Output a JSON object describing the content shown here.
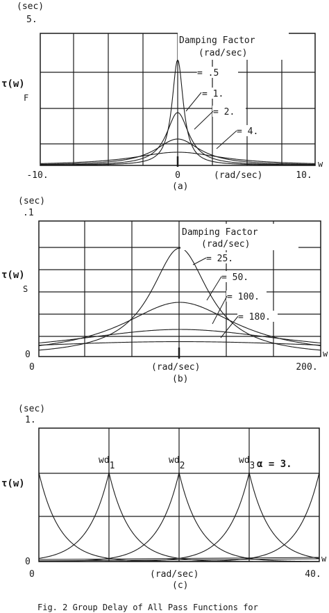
{
  "chart_data": [
    {
      "type": "line",
      "panel_label": "(a)",
      "ylabel": "τ(w)",
      "y_unit": "(sec)",
      "y_max_label": "5.",
      "y_side_letter": "F",
      "xlabel": "(rad/sec)",
      "x_end_label": "w",
      "x_tick_labels": [
        "-10.",
        "0",
        "10."
      ],
      "xlim": [
        -10,
        10
      ],
      "ylim": [
        0,
        5
      ],
      "legend_title": [
        "Damping Factor",
        "(rad/sec)"
      ],
      "legend_labels": [
        "= .5",
        "= 1.",
        "= 2.",
        "= 4."
      ],
      "grid": true,
      "series": [
        {
          "damping": 0.5,
          "peak": 4.0
        },
        {
          "damping": 1.0,
          "peak": 2.0
        },
        {
          "damping": 2.0,
          "peak": 1.0
        },
        {
          "damping": 4.0,
          "peak": 0.5
        }
      ]
    },
    {
      "type": "line",
      "panel_label": "(b)",
      "ylabel": "τ(w)",
      "y_unit": "(sec)",
      "y_max_label": ".1",
      "y_side_letter": "S",
      "xlabel": "(rad/sec)",
      "x_end_label": "w",
      "x_tick_labels": [
        "0",
        "200."
      ],
      "y_min_label": "0",
      "xlim": [
        0,
        200
      ],
      "ylim": [
        0,
        0.1
      ],
      "legend_title": [
        "Damping Factor",
        "(rad/sec)"
      ],
      "legend_labels": [
        "= 25.",
        "= 50.",
        "= 100.",
        "= 180."
      ],
      "grid": true,
      "series": [
        {
          "damping": 25,
          "peak": 0.08
        },
        {
          "damping": 50,
          "peak": 0.04
        },
        {
          "damping": 100,
          "peak": 0.02
        },
        {
          "damping": 180,
          "peak": 0.011
        }
      ]
    },
    {
      "type": "line",
      "panel_label": "(c)",
      "ylabel": "τ(w)",
      "y_unit": "(sec)",
      "y_max_label": "1.",
      "y_min_label": "0",
      "xlabel": "(rad/sec)",
      "x_end_label": "w",
      "x_tick_labels": [
        "0",
        "40."
      ],
      "xlim": [
        0,
        40
      ],
      "ylim": [
        0,
        1
      ],
      "alpha_label": "α = 3.",
      "peak_labels": [
        {
          "base": "wd",
          "sub": "1"
        },
        {
          "base": "wd",
          "sub": "2"
        },
        {
          "base": "wd",
          "sub": "3"
        }
      ],
      "grid": true,
      "series": [
        {
          "center": 0,
          "peak": 0.667
        },
        {
          "center": 10,
          "peak": 0.667
        },
        {
          "center": 20,
          "peak": 0.667
        },
        {
          "center": 30,
          "peak": 0.667
        },
        {
          "center": 40,
          "peak": 0.667
        }
      ]
    }
  ],
  "caption": "Fig. 2 Group Delay of All Pass Functions for"
}
